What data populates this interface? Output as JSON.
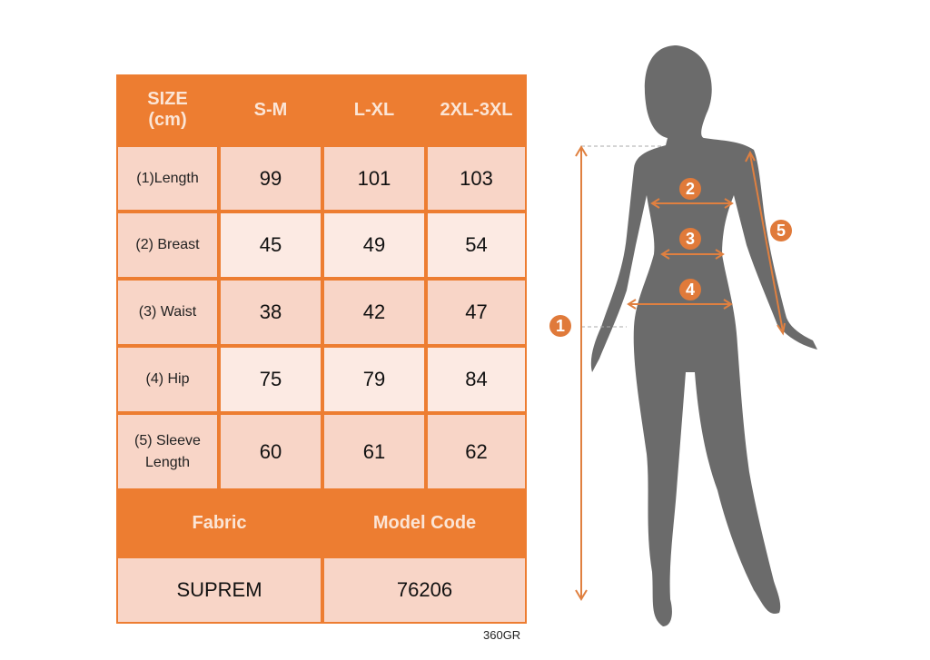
{
  "table": {
    "header": [
      "SIZE\n(cm)",
      "S-M",
      "L-XL",
      "2XL-3XL"
    ],
    "rows": [
      {
        "label": "(1)Length",
        "values": [
          "99",
          "101",
          "103"
        ]
      },
      {
        "label": "(2) Breast",
        "values": [
          "45",
          "49",
          "54"
        ]
      },
      {
        "label": "(3) Waist",
        "values": [
          "38",
          "42",
          "47"
        ]
      },
      {
        "label": "(4) Hip",
        "values": [
          "75",
          "79",
          "84"
        ]
      },
      {
        "label": "(5) Sleeve Length",
        "values": [
          "60",
          "61",
          "62"
        ]
      }
    ],
    "footer_header": [
      "Fabric",
      "Model Code"
    ],
    "footer_values": [
      "SUPREM",
      "76206"
    ]
  },
  "watermark_code": "360GR",
  "figure": {
    "markers": [
      "1",
      "2",
      "3",
      "4",
      "5"
    ]
  },
  "colors": {
    "accent": "#ED7D31",
    "cell_dark": "#F8D5C7",
    "cell_light": "#FCEAE3",
    "silhouette": "#6B6B6B"
  }
}
